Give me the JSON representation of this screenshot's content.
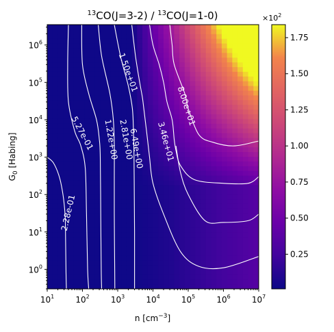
{
  "chart_data": {
    "type": "heatmap",
    "title": {
      "num_sup": "13",
      "num_main": "CO(J=3-2) / ",
      "den_sup": "13",
      "den_main": "CO(J=1-0)"
    },
    "xlabel": {
      "main": "n [cm",
      "sup": "−3",
      "end": "]"
    },
    "ylabel": {
      "main": "G",
      "sub": "0",
      "end": " [Habing]"
    },
    "x_scale": "log",
    "y_scale": "log",
    "xlim": [
      10,
      10000000
    ],
    "ylim": [
      0.3,
      3500000
    ],
    "x_ticks": [
      {
        "base": "10",
        "exp": "1",
        "value": 10
      },
      {
        "base": "10",
        "exp": "2",
        "value": 100
      },
      {
        "base": "10",
        "exp": "3",
        "value": 1000
      },
      {
        "base": "10",
        "exp": "4",
        "value": 10000
      },
      {
        "base": "10",
        "exp": "5",
        "value": 100000
      },
      {
        "base": "10",
        "exp": "6",
        "value": 1000000
      },
      {
        "base": "10",
        "exp": "7",
        "value": 10000000
      }
    ],
    "y_ticks": [
      {
        "base": "10",
        "exp": "0",
        "value": 1
      },
      {
        "base": "10",
        "exp": "1",
        "value": 10
      },
      {
        "base": "10",
        "exp": "2",
        "value": 100
      },
      {
        "base": "10",
        "exp": "3",
        "value": 1000
      },
      {
        "base": "10",
        "exp": "4",
        "value": 10000
      },
      {
        "base": "10",
        "exp": "5",
        "value": 100000
      },
      {
        "base": "10",
        "exp": "6",
        "value": 1000000
      }
    ],
    "colormap": "plasma",
    "colorbar": {
      "range": [
        0.01,
        1.84
      ],
      "ticks": [
        "0.25",
        "0.50",
        "0.75",
        "1.00",
        "1.25",
        "1.50",
        "1.75"
      ],
      "tick_values": [
        0.25,
        0.5,
        0.75,
        1.0,
        1.25,
        1.5,
        1.75
      ],
      "multiplier_base": "×10",
      "multiplier_exp": "2"
    },
    "contours": [
      {
        "label": "2.28e-01",
        "value": 0.228,
        "path": [
          [
            10,
            1000
          ],
          [
            15,
            700
          ],
          [
            22,
            300
          ],
          [
            28,
            100
          ],
          [
            32,
            30
          ],
          [
            33,
            10
          ],
          [
            34,
            1
          ],
          [
            35,
            0.3
          ]
        ]
      },
      {
        "label": "5.27e-01",
        "value": 0.527,
        "path": [
          [
            40,
            3500000
          ],
          [
            38,
            300000
          ],
          [
            40,
            30000
          ],
          [
            60,
            5000
          ],
          [
            90,
            2000
          ],
          [
            120,
            500
          ],
          [
            130,
            30
          ],
          [
            140,
            1
          ],
          [
            150,
            0.3
          ]
        ]
      },
      {
        "label": "1.22e+00",
        "value": 1.22,
        "path": [
          [
            95,
            3500000
          ],
          [
            100,
            300000
          ],
          [
            150,
            50000
          ],
          [
            250,
            10000
          ],
          [
            300,
            3000
          ],
          [
            320,
            1000
          ],
          [
            330,
            30
          ],
          [
            340,
            1
          ],
          [
            350,
            0.3
          ]
        ]
      },
      {
        "label": "2.81e+00",
        "value": 2.81,
        "path": [
          [
            280,
            3500000
          ],
          [
            350,
            500000
          ],
          [
            600,
            50000
          ],
          [
            750,
            10000
          ],
          [
            800,
            2000
          ],
          [
            800,
            300
          ],
          [
            800,
            30
          ],
          [
            820,
            1
          ],
          [
            830,
            0.3
          ]
        ]
      },
      {
        "label": "6.49e+00",
        "value": 6.49,
        "path": [
          [
            800,
            3500000
          ],
          [
            1200,
            500000
          ],
          [
            2000,
            80000
          ],
          [
            2600,
            20000
          ],
          [
            2800,
            5000
          ],
          [
            2900,
            1000
          ],
          [
            2950,
            100
          ],
          [
            3000,
            10
          ],
          [
            3000,
            1
          ],
          [
            3000,
            0.3
          ]
        ]
      },
      {
        "label": "1.50e+01",
        "value": 15.0,
        "path": [
          [
            2500,
            3500000
          ],
          [
            3200,
            500000
          ],
          [
            4200,
            100000
          ],
          [
            5000,
            40000
          ],
          [
            5500,
            20000
          ],
          [
            6000,
            10000
          ],
          [
            7000,
            3000
          ],
          [
            8000,
            1000
          ],
          [
            10000,
            200
          ],
          [
            20000,
            30
          ],
          [
            60000,
            3
          ],
          [
            200000,
            1.2
          ],
          [
            1000000,
            1.1
          ],
          [
            10000000,
            2.2
          ]
        ]
      },
      {
        "label": "3.46e+01",
        "value": 34.6,
        "path": [
          [
            8000,
            3500000
          ],
          [
            10000,
            1000000
          ],
          [
            15000,
            300000
          ],
          [
            20000,
            100000
          ],
          [
            25000,
            30000
          ],
          [
            35000,
            10000
          ],
          [
            40000,
            3000
          ],
          [
            45000,
            1500
          ],
          [
            60000,
            600
          ],
          [
            150000,
            250
          ],
          [
            1000000,
            200
          ],
          [
            5000000,
            200
          ],
          [
            10000000,
            300
          ]
        ]
      },
      {
        "label": "",
        "value": 60.0,
        "path": [
          [
            45000,
            2000
          ],
          [
            60000,
            400
          ],
          [
            100000,
            100
          ],
          [
            300000,
            20
          ],
          [
            1000000,
            18
          ],
          [
            5000000,
            20
          ],
          [
            10000000,
            30
          ]
        ]
      },
      {
        "label": "8.00e+01",
        "value": 80.0,
        "path": [
          [
            30000,
            3500000
          ],
          [
            35000,
            1000000
          ],
          [
            40000,
            300000
          ],
          [
            80000,
            50000
          ],
          [
            100000,
            20000
          ],
          [
            200000,
            4000
          ],
          [
            500000,
            2500
          ],
          [
            2000000,
            2000
          ],
          [
            10000000,
            2700
          ]
        ]
      }
    ]
  }
}
